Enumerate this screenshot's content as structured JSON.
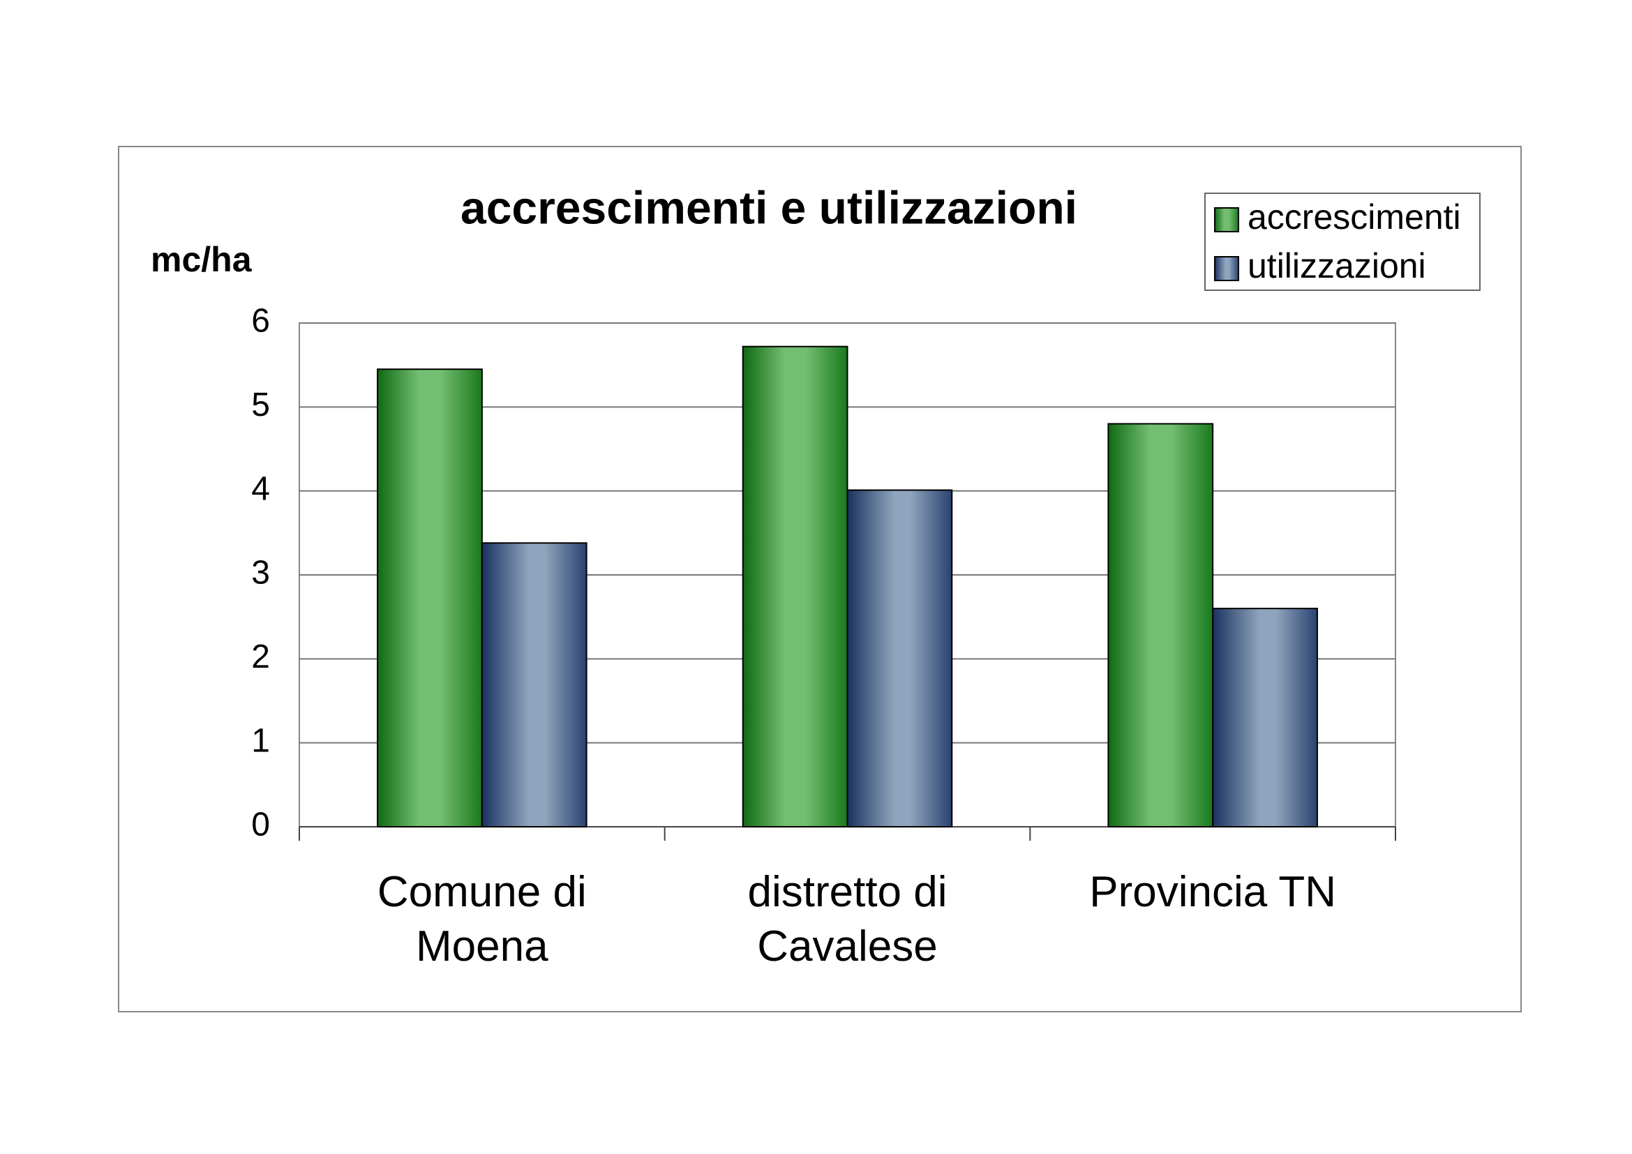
{
  "chart_data": {
    "type": "bar",
    "title": "accrescimenti e utilizzazioni",
    "y_label": "mc/ha",
    "categories": [
      "Comune di Moena",
      "distretto di Cavalese",
      "Provincia TN"
    ],
    "series": [
      {
        "name": "accrescimenti",
        "color": "#2e8b2e",
        "values": [
          5.45,
          5.72,
          4.8
        ]
      },
      {
        "name": "utilizzazioni",
        "color": "#1f3864",
        "values": [
          3.38,
          4.01,
          2.6
        ]
      }
    ],
    "ylim": [
      0,
      6
    ],
    "yticks": [
      0,
      1,
      2,
      3,
      4,
      5,
      6
    ],
    "grid": true,
    "legend": "upper right"
  }
}
